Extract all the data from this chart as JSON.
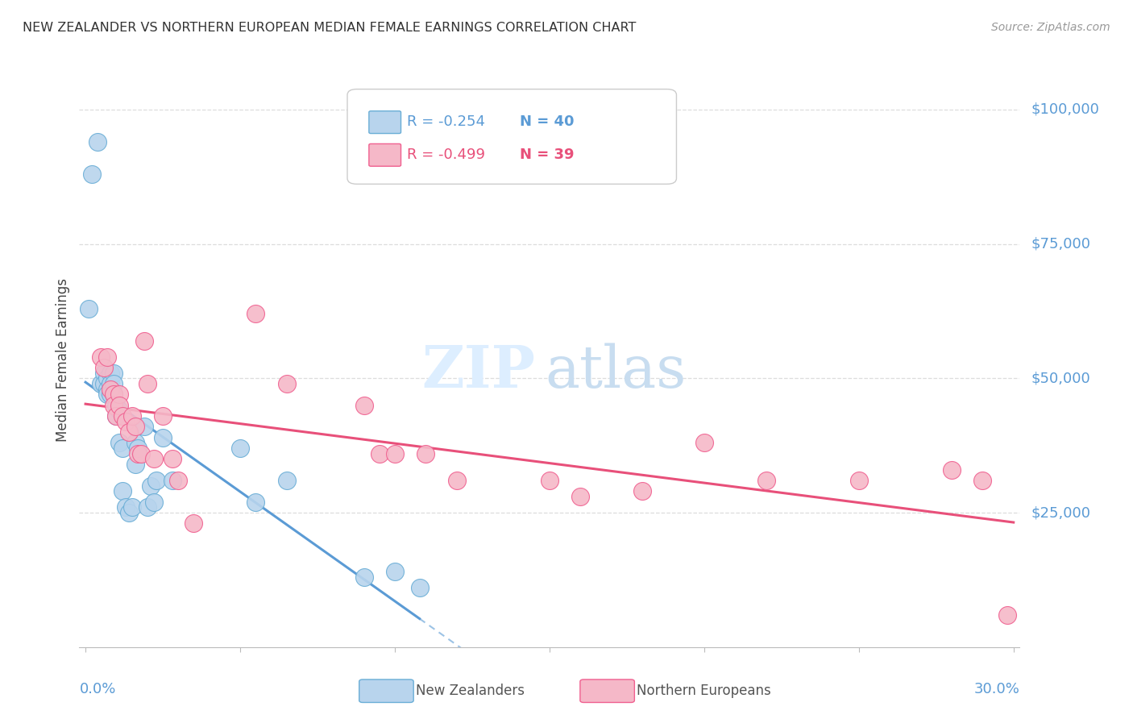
{
  "title": "NEW ZEALANDER VS NORTHERN EUROPEAN MEDIAN FEMALE EARNINGS CORRELATION CHART",
  "source": "Source: ZipAtlas.com",
  "ylabel": "Median Female Earnings",
  "legend_nz": "New Zealanders",
  "legend_ne": "Northern Europeans",
  "legend_nz_r": "-0.254",
  "legend_nz_n": "40",
  "legend_ne_r": "-0.499",
  "legend_ne_n": "39",
  "nz_color": "#b8d4ed",
  "ne_color": "#f5b8c8",
  "nz_edge_color": "#6aaed6",
  "ne_edge_color": "#f06090",
  "nz_line_color": "#5b9bd5",
  "ne_line_color": "#e8507a",
  "watermark_color": "#ddeeff",
  "title_color": "#333333",
  "source_color": "#999999",
  "label_color": "#5b9bd5",
  "grid_color": "#dddddd",
  "ylim": [
    0,
    107000
  ],
  "xlim": [
    -0.002,
    0.302
  ],
  "yticks": [
    25000,
    50000,
    75000,
    100000
  ],
  "ytick_labels": [
    "$25,000",
    "$50,000",
    "$75,000",
    "$100,000"
  ],
  "xtick_positions": [
    0.0,
    0.05,
    0.1,
    0.15,
    0.2,
    0.25,
    0.3
  ],
  "nz_x": [
    0.001,
    0.002,
    0.004,
    0.005,
    0.006,
    0.006,
    0.007,
    0.007,
    0.007,
    0.008,
    0.008,
    0.008,
    0.009,
    0.009,
    0.009,
    0.01,
    0.01,
    0.011,
    0.011,
    0.012,
    0.012,
    0.013,
    0.014,
    0.015,
    0.016,
    0.016,
    0.017,
    0.019,
    0.02,
    0.021,
    0.022,
    0.023,
    0.025,
    0.028,
    0.05,
    0.055,
    0.065,
    0.09,
    0.1,
    0.108
  ],
  "nz_y": [
    63000,
    88000,
    94000,
    49000,
    51000,
    49000,
    50000,
    48000,
    47000,
    51000,
    49000,
    47000,
    51000,
    49000,
    47000,
    45000,
    43000,
    44000,
    38000,
    37000,
    29000,
    26000,
    25000,
    26000,
    34000,
    38000,
    37000,
    41000,
    26000,
    30000,
    27000,
    31000,
    39000,
    31000,
    37000,
    27000,
    31000,
    13000,
    14000,
    11000
  ],
  "ne_x": [
    0.005,
    0.006,
    0.007,
    0.008,
    0.009,
    0.009,
    0.01,
    0.011,
    0.011,
    0.012,
    0.013,
    0.014,
    0.015,
    0.016,
    0.017,
    0.018,
    0.019,
    0.02,
    0.022,
    0.025,
    0.028,
    0.03,
    0.035,
    0.055,
    0.065,
    0.09,
    0.095,
    0.1,
    0.11,
    0.12,
    0.15,
    0.16,
    0.18,
    0.2,
    0.22,
    0.25,
    0.28,
    0.29,
    0.298
  ],
  "ne_y": [
    54000,
    52000,
    54000,
    48000,
    47000,
    45000,
    43000,
    47000,
    45000,
    43000,
    42000,
    40000,
    43000,
    41000,
    36000,
    36000,
    57000,
    49000,
    35000,
    43000,
    35000,
    31000,
    23000,
    62000,
    49000,
    45000,
    36000,
    36000,
    36000,
    31000,
    31000,
    28000,
    29000,
    38000,
    31000,
    31000,
    33000,
    31000,
    6000
  ]
}
